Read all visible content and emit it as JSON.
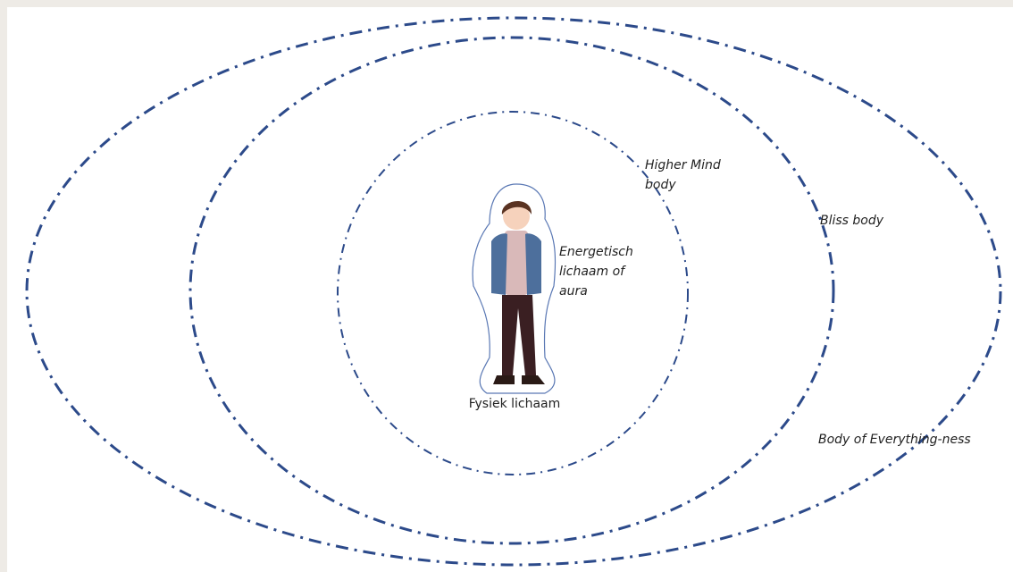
{
  "labels": [
    {
      "lines": [
        "Higher Mind",
        "body"
      ]
    },
    {
      "lines": [
        "Bliss body"
      ]
    },
    {
      "lines": [
        "Energetisch",
        "lichaam of",
        "aura"
      ]
    },
    {
      "lines": [
        "Fysiek lichaam"
      ]
    },
    {
      "lines": [
        "Body of Everything-ness"
      ]
    }
  ]
}
